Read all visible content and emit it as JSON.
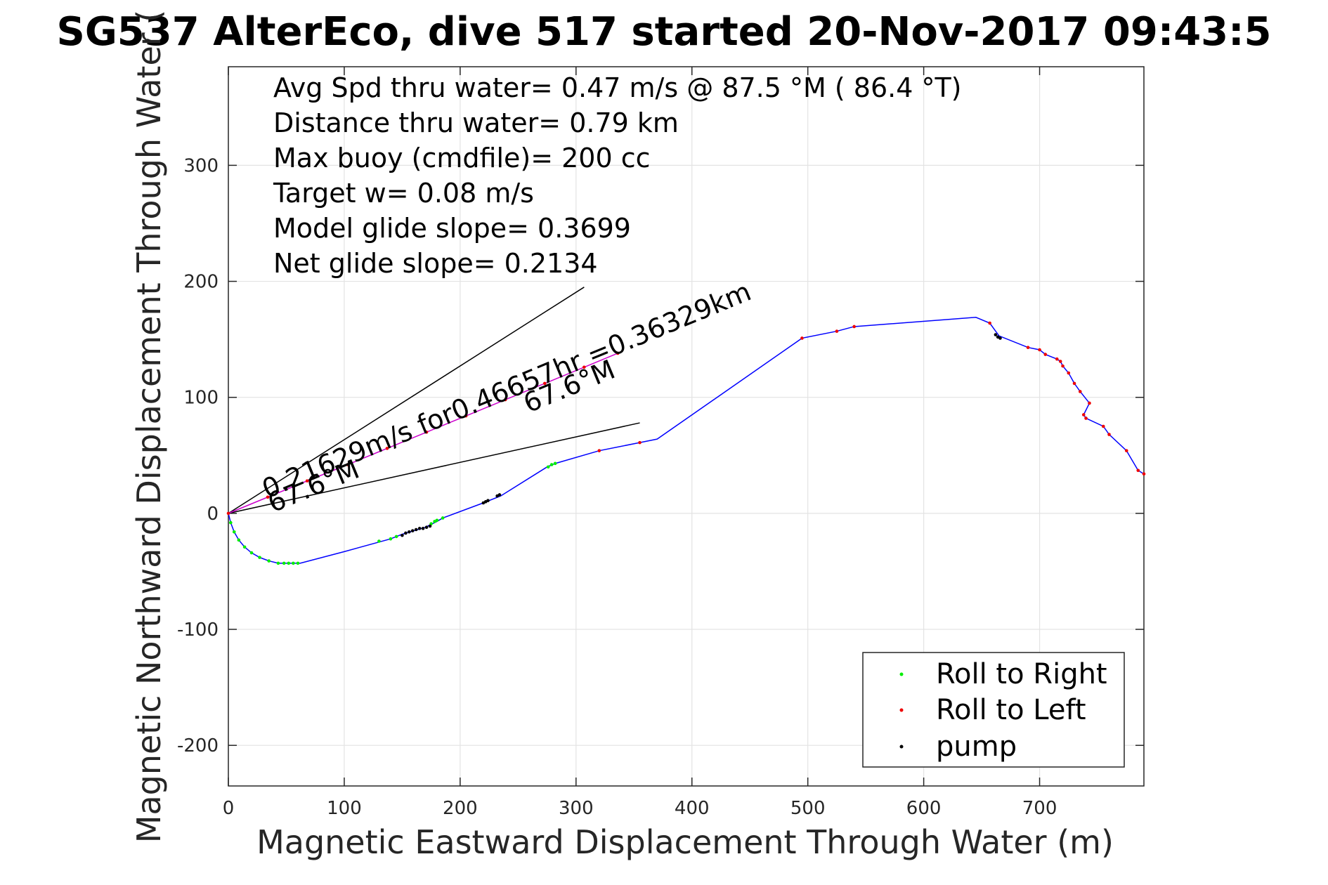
{
  "chart_data": {
    "type": "scatter",
    "title": "SG537 AlterEco, dive 517 started 20-Nov-2017 09:43:5",
    "xlabel": "Magnetic Eastward Displacement Through Water (m)",
    "ylabel": "Magnetic Northward Displacement Through Water (",
    "xlim": [
      0,
      790
    ],
    "ylim": [
      -235,
      385
    ],
    "xticks": [
      0,
      100,
      200,
      300,
      400,
      500,
      600,
      700
    ],
    "yticks": [
      -200,
      -100,
      0,
      100,
      200,
      300
    ],
    "xtick_labels": [
      "0",
      "100",
      "200",
      "300",
      "400",
      "500",
      "600",
      "700"
    ],
    "ytick_labels": [
      "-200",
      "-100",
      "0",
      "100",
      "200",
      "300"
    ],
    "grid": true,
    "legend_position": "bottom-right",
    "info_lines": [
      "Avg Spd thru water=  0.47 m/s @  87.5 °M ( 86.4 °T)",
      "Distance thru water=  0.79 km",
      "Max buoy (cmdfile)= 200 cc",
      "Target w= 0.08 m/s",
      "Model glide slope= 0.3699",
      "Net glide slope= 0.2134"
    ],
    "annotations": {
      "main": "0.21629m/s for0.46657hr =0.36329km",
      "heading_far": "67.6°M",
      "heading_near": "67.6°M"
    },
    "track": {
      "color": "#0000ff",
      "x": [
        0,
        2,
        5,
        9,
        14,
        20,
        27,
        35,
        43,
        52,
        62,
        100,
        140,
        150,
        160,
        170,
        180,
        185,
        220,
        235,
        275,
        282,
        320,
        355,
        370,
        495,
        525,
        540,
        645,
        657,
        665,
        690,
        700,
        705,
        715,
        718,
        720,
        725,
        730,
        735,
        743,
        738,
        740,
        755,
        760,
        775,
        785,
        790
      ],
      "y": [
        0,
        -8,
        -16,
        -23,
        -29,
        -34,
        -38,
        -41,
        -43,
        -43,
        -43,
        -33,
        -22,
        -18,
        -15,
        -12,
        -7,
        -4,
        9,
        15,
        40,
        43,
        54,
        61,
        64,
        151,
        157,
        161,
        169,
        164,
        153,
        143,
        141,
        137,
        133,
        131,
        127,
        121,
        112,
        105,
        95,
        85,
        82,
        75,
        68,
        54,
        37,
        34
      ]
    },
    "model_track": {
      "color": "#cc00cc",
      "x": [
        0,
        34,
        68,
        103,
        137,
        171,
        205,
        239,
        273,
        307,
        336
      ],
      "y": [
        0,
        14,
        28,
        42,
        56,
        70,
        84,
        98,
        112,
        126,
        138
      ]
    },
    "slope_lines": [
      {
        "x": [
          0,
          307
        ],
        "y": [
          0,
          195
        ]
      },
      {
        "x": [
          0,
          355
        ],
        "y": [
          0,
          78
        ]
      }
    ],
    "series": [
      {
        "name": "Roll to Right",
        "color": "#00ee00",
        "x": [
          2,
          5,
          9,
          14,
          20,
          27,
          35,
          43,
          48,
          52,
          56,
          60,
          130,
          140,
          145,
          175,
          178,
          180,
          185,
          276,
          279,
          282
        ],
        "y": [
          -8,
          -16,
          -23,
          -29,
          -34,
          -38,
          -41,
          -43,
          -43,
          -43,
          -43,
          -43,
          -24,
          -22,
          -20,
          -9,
          -7,
          -6,
          -4,
          40,
          42,
          43
        ]
      },
      {
        "name": "Roll to Left",
        "color": "#ee0000",
        "x": [
          0,
          320,
          355,
          495,
          525,
          540,
          657,
          690,
          700,
          705,
          715,
          718,
          720,
          725,
          730,
          735,
          743,
          738,
          740,
          755,
          760,
          775,
          785,
          790,
          34,
          68,
          103,
          137,
          171,
          205,
          239,
          273,
          307,
          336
        ],
        "y": [
          0,
          54,
          61,
          151,
          157,
          161,
          164,
          143,
          141,
          137,
          133,
          131,
          127,
          121,
          112,
          105,
          95,
          85,
          82,
          75,
          68,
          54,
          37,
          34,
          14,
          28,
          42,
          56,
          70,
          84,
          98,
          112,
          126,
          138
        ]
      },
      {
        "name": "pump",
        "color": "#000000",
        "x": [
          150,
          153,
          156,
          159,
          162,
          165,
          168,
          171,
          174,
          220,
          222,
          224,
          232,
          234,
          662,
          664,
          666
        ],
        "y": [
          -19,
          -17,
          -16,
          -15,
          -14,
          -13,
          -13,
          -12,
          -11,
          9,
          10,
          11,
          15,
          16,
          154,
          152,
          151
        ]
      }
    ]
  }
}
